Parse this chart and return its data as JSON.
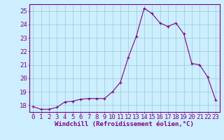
{
  "x": [
    0,
    1,
    2,
    3,
    4,
    5,
    6,
    7,
    8,
    9,
    10,
    11,
    12,
    13,
    14,
    15,
    16,
    17,
    18,
    19,
    20,
    21,
    22,
    23
  ],
  "y": [
    17.9,
    17.7,
    17.7,
    17.85,
    18.25,
    18.3,
    18.45,
    18.5,
    18.5,
    18.5,
    19.0,
    19.7,
    21.55,
    23.1,
    25.2,
    24.8,
    24.1,
    23.85,
    24.1,
    23.3,
    21.1,
    21.0,
    20.1,
    18.4
  ],
  "line_color": "#800080",
  "marker": "+",
  "marker_color": "#800080",
  "bg_color": "#cceeff",
  "grid_color": "#99cccc",
  "xlabel": "Windchill (Refroidissement éolien,°C)",
  "xlim": [
    -0.5,
    23.5
  ],
  "ylim": [
    17.5,
    25.5
  ],
  "yticks": [
    18,
    19,
    20,
    21,
    22,
    23,
    24,
    25
  ],
  "xticks": [
    0,
    1,
    2,
    3,
    4,
    5,
    6,
    7,
    8,
    9,
    10,
    11,
    12,
    13,
    14,
    15,
    16,
    17,
    18,
    19,
    20,
    21,
    22,
    23
  ],
  "xlabel_fontsize": 6.5,
  "tick_fontsize": 6.5,
  "line_width": 0.8,
  "marker_size": 3.5,
  "spine_color": "#800080"
}
